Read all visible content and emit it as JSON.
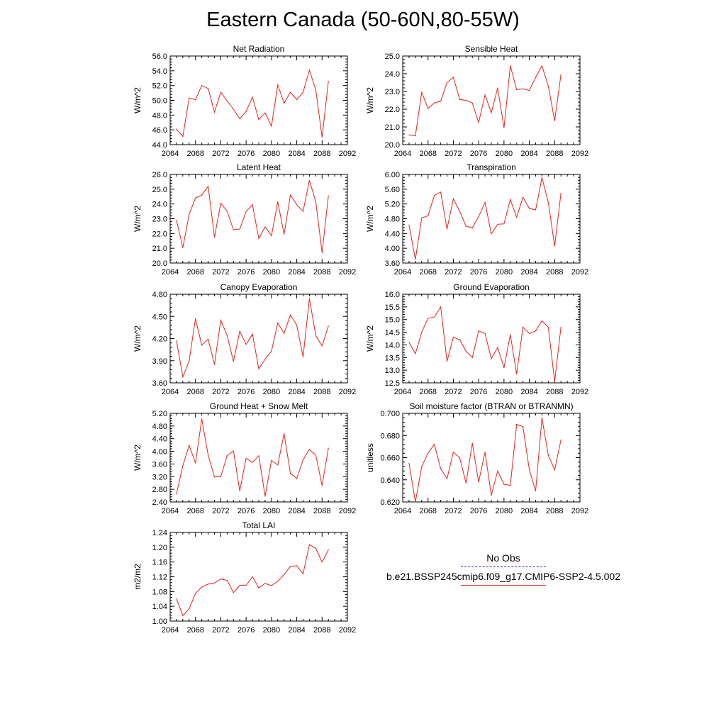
{
  "title": "Eastern Canada (50-60N,80-55W)",
  "legend": {
    "obs_label": "No Obs",
    "obs_color": "#2b2bd6",
    "model_label": "b.e21.BSSP245cmip6.f09_g17.CMIP6-SSP2-4.5.002",
    "model_color": "#e8231a"
  },
  "chart_data": [
    {
      "type": "line",
      "title": "Net Radiation",
      "ylabel": "W/m^2",
      "xlim": [
        2064,
        2092
      ],
      "ylim": [
        44.0,
        56.0
      ],
      "xticks": [
        "2064",
        "2068",
        "2072",
        "2076",
        "2080",
        "2084",
        "2088",
        "2092"
      ],
      "yticks": [
        "44.0",
        "46.0",
        "48.0",
        "50.0",
        "52.0",
        "54.0",
        "56.0"
      ],
      "x": [
        2065,
        2066,
        2067,
        2068,
        2069,
        2070,
        2071,
        2072,
        2073,
        2074,
        2075,
        2076,
        2077,
        2078,
        2079,
        2080,
        2081,
        2082,
        2083,
        2084,
        2085,
        2086,
        2087,
        2088,
        2089
      ],
      "y": [
        46.1,
        45.1,
        50.3,
        50.1,
        52.0,
        51.6,
        48.4,
        51.1,
        49.9,
        48.8,
        47.5,
        48.5,
        50.4,
        47.4,
        48.3,
        46.5,
        52.1,
        49.6,
        51.1,
        50.1,
        51.1,
        54.1,
        51.4,
        45.0,
        52.6
      ]
    },
    {
      "type": "line",
      "title": "Sensible Heat",
      "ylabel": "W/m^2",
      "xlim": [
        2064,
        2092
      ],
      "ylim": [
        20.0,
        25.0
      ],
      "xticks": [
        "2064",
        "2068",
        "2072",
        "2076",
        "2080",
        "2084",
        "2088",
        "2092"
      ],
      "yticks": [
        "20.0",
        "21.0",
        "22.0",
        "23.0",
        "24.0",
        "25.0"
      ],
      "x": [
        2065,
        2066,
        2067,
        2068,
        2069,
        2070,
        2071,
        2072,
        2073,
        2074,
        2075,
        2076,
        2077,
        2078,
        2079,
        2080,
        2081,
        2082,
        2083,
        2084,
        2085,
        2086,
        2087,
        2088,
        2089
      ],
      "y": [
        20.55,
        20.5,
        22.95,
        22.05,
        22.35,
        22.45,
        23.5,
        23.8,
        22.55,
        22.5,
        22.35,
        21.25,
        22.8,
        21.8,
        23.2,
        20.95,
        24.45,
        23.1,
        23.15,
        23.05,
        23.8,
        24.45,
        23.3,
        21.35,
        23.95
      ]
    },
    {
      "type": "line",
      "title": "Latent Heat",
      "ylabel": "W/m^2",
      "xlim": [
        2064,
        2092
      ],
      "ylim": [
        20.0,
        26.0
      ],
      "xticks": [
        "2064",
        "2068",
        "2072",
        "2076",
        "2080",
        "2084",
        "2088",
        "2092"
      ],
      "yticks": [
        "20.0",
        "21.0",
        "22.0",
        "23.0",
        "24.0",
        "25.0",
        "26.0"
      ],
      "x": [
        2065,
        2066,
        2067,
        2068,
        2069,
        2070,
        2071,
        2072,
        2073,
        2074,
        2075,
        2076,
        2077,
        2078,
        2079,
        2080,
        2081,
        2082,
        2083,
        2084,
        2085,
        2086,
        2087,
        2088,
        2089
      ],
      "y": [
        22.9,
        21.05,
        23.3,
        24.4,
        24.6,
        25.2,
        21.75,
        24.05,
        23.5,
        22.25,
        22.3,
        23.5,
        23.95,
        21.65,
        22.45,
        21.85,
        24.15,
        21.95,
        24.6,
        23.95,
        23.5,
        25.6,
        24.15,
        20.7,
        24.55
      ]
    },
    {
      "type": "line",
      "title": "Transpiration",
      "ylabel": "W/m^2",
      "xlim": [
        2064,
        2092
      ],
      "ylim": [
        3.6,
        6.0
      ],
      "xticks": [
        "2064",
        "2068",
        "2072",
        "2076",
        "2080",
        "2084",
        "2088",
        "2092"
      ],
      "yticks": [
        "3.60",
        "4.00",
        "4.40",
        "4.80",
        "5.20",
        "5.60",
        "6.00"
      ],
      "x": [
        2065,
        2066,
        2067,
        2068,
        2069,
        2070,
        2071,
        2072,
        2073,
        2074,
        2075,
        2076,
        2077,
        2078,
        2079,
        2080,
        2081,
        2082,
        2083,
        2084,
        2085,
        2086,
        2087,
        2088,
        2089
      ],
      "y": [
        4.63,
        3.7,
        4.82,
        4.88,
        5.43,
        5.52,
        4.52,
        5.34,
        5.0,
        4.6,
        4.55,
        4.86,
        5.24,
        4.39,
        4.65,
        4.66,
        5.32,
        4.84,
        5.38,
        5.08,
        5.04,
        5.91,
        5.24,
        4.06,
        5.49
      ]
    },
    {
      "type": "line",
      "title": "Canopy Evaporation",
      "ylabel": "W/m^2",
      "xlim": [
        2064,
        2092
      ],
      "ylim": [
        3.6,
        4.8
      ],
      "xticks": [
        "2064",
        "2068",
        "2072",
        "2076",
        "2080",
        "2084",
        "2088",
        "2092"
      ],
      "yticks": [
        "3.60",
        "3.90",
        "4.20",
        "4.50",
        "4.80"
      ],
      "x": [
        2065,
        2066,
        2067,
        2068,
        2069,
        2070,
        2071,
        2072,
        2073,
        2074,
        2075,
        2076,
        2077,
        2078,
        2079,
        2080,
        2081,
        2082,
        2083,
        2084,
        2085,
        2086,
        2087,
        2088,
        2089
      ],
      "y": [
        4.17,
        3.68,
        3.9,
        4.47,
        4.11,
        4.19,
        3.85,
        4.45,
        4.24,
        3.89,
        4.3,
        4.12,
        4.26,
        3.79,
        3.92,
        4.03,
        4.41,
        4.27,
        4.52,
        4.38,
        3.95,
        4.74,
        4.24,
        4.1,
        4.37
      ]
    },
    {
      "type": "line",
      "title": "Ground Evaporation",
      "ylabel": "W/m^2",
      "xlim": [
        2064,
        2092
      ],
      "ylim": [
        12.5,
        16.0
      ],
      "xticks": [
        "2064",
        "2068",
        "2072",
        "2076",
        "2080",
        "2084",
        "2088",
        "2092"
      ],
      "yticks": [
        "12.5",
        "13.0",
        "13.5",
        "14.0",
        "14.5",
        "15.0",
        "15.5",
        "16.0"
      ],
      "x": [
        2065,
        2066,
        2067,
        2068,
        2069,
        2070,
        2071,
        2072,
        2073,
        2074,
        2075,
        2076,
        2077,
        2078,
        2079,
        2080,
        2081,
        2082,
        2083,
        2084,
        2085,
        2086,
        2087,
        2088,
        2089
      ],
      "y": [
        14.1,
        13.65,
        14.5,
        15.05,
        15.1,
        15.5,
        13.35,
        14.3,
        14.2,
        13.75,
        13.5,
        14.55,
        14.45,
        13.45,
        13.9,
        13.1,
        14.4,
        12.85,
        14.7,
        14.45,
        14.55,
        14.95,
        14.7,
        12.55,
        14.7
      ]
    },
    {
      "type": "line",
      "title": "Ground Heat + Snow Melt",
      "ylabel": "W/m^2",
      "xlim": [
        2064,
        2092
      ],
      "ylim": [
        2.4,
        5.2
      ],
      "xticks": [
        "2064",
        "2068",
        "2072",
        "2076",
        "2080",
        "2084",
        "2088",
        "2092"
      ],
      "yticks": [
        "2.40",
        "2.80",
        "3.20",
        "3.60",
        "4.00",
        "4.40",
        "4.80",
        "5.20"
      ],
      "x": [
        2065,
        2066,
        2067,
        2068,
        2069,
        2070,
        2071,
        2072,
        2073,
        2074,
        2075,
        2076,
        2077,
        2078,
        2079,
        2080,
        2081,
        2082,
        2083,
        2084,
        2085,
        2086,
        2087,
        2088,
        2089
      ],
      "y": [
        2.65,
        3.55,
        4.19,
        3.63,
        5.02,
        3.88,
        3.19,
        3.2,
        3.87,
        4.01,
        2.75,
        3.78,
        3.65,
        3.86,
        2.58,
        3.71,
        3.57,
        4.56,
        3.3,
        3.14,
        3.73,
        4.06,
        3.88,
        2.92,
        4.1
      ]
    },
    {
      "type": "line",
      "title": "Soil moisture factor (BTRAN or BTRANMN)",
      "ylabel": "unitless",
      "xlim": [
        2064,
        2092
      ],
      "ylim": [
        0.62,
        0.7
      ],
      "xticks": [
        "2064",
        "2068",
        "2072",
        "2076",
        "2080",
        "2084",
        "2088",
        "2092"
      ],
      "yticks": [
        "0.620",
        "0.640",
        "0.660",
        "0.680",
        "0.700"
      ],
      "x": [
        2065,
        2066,
        2067,
        2068,
        2069,
        2070,
        2071,
        2072,
        2073,
        2074,
        2075,
        2076,
        2077,
        2078,
        2079,
        2080,
        2081,
        2082,
        2083,
        2084,
        2085,
        2086,
        2087,
        2088,
        2089
      ],
      "y": [
        0.655,
        0.62,
        0.652,
        0.664,
        0.672,
        0.65,
        0.641,
        0.665,
        0.66,
        0.637,
        0.673,
        0.638,
        0.665,
        0.626,
        0.648,
        0.636,
        0.635,
        0.69,
        0.688,
        0.649,
        0.63,
        0.696,
        0.662,
        0.649,
        0.676
      ]
    },
    {
      "type": "line",
      "title": "Total LAI",
      "ylabel": "m2/m2",
      "xlim": [
        2064,
        2092
      ],
      "ylim": [
        1.0,
        1.24
      ],
      "xticks": [
        "2064",
        "2068",
        "2072",
        "2076",
        "2080",
        "2084",
        "2088",
        "2092"
      ],
      "yticks": [
        "1.00",
        "1.04",
        "1.08",
        "1.12",
        "1.16",
        "1.20",
        "1.24"
      ],
      "x": [
        2065,
        2066,
        2067,
        2068,
        2069,
        2070,
        2071,
        2072,
        2073,
        2074,
        2075,
        2076,
        2077,
        2078,
        2079,
        2080,
        2081,
        2082,
        2083,
        2084,
        2085,
        2086,
        2087,
        2088,
        2089
      ],
      "y": [
        1.06,
        1.015,
        1.033,
        1.075,
        1.092,
        1.1,
        1.103,
        1.114,
        1.11,
        1.077,
        1.097,
        1.097,
        1.12,
        1.09,
        1.102,
        1.096,
        1.108,
        1.126,
        1.148,
        1.15,
        1.128,
        1.207,
        1.197,
        1.16,
        1.193
      ]
    }
  ]
}
